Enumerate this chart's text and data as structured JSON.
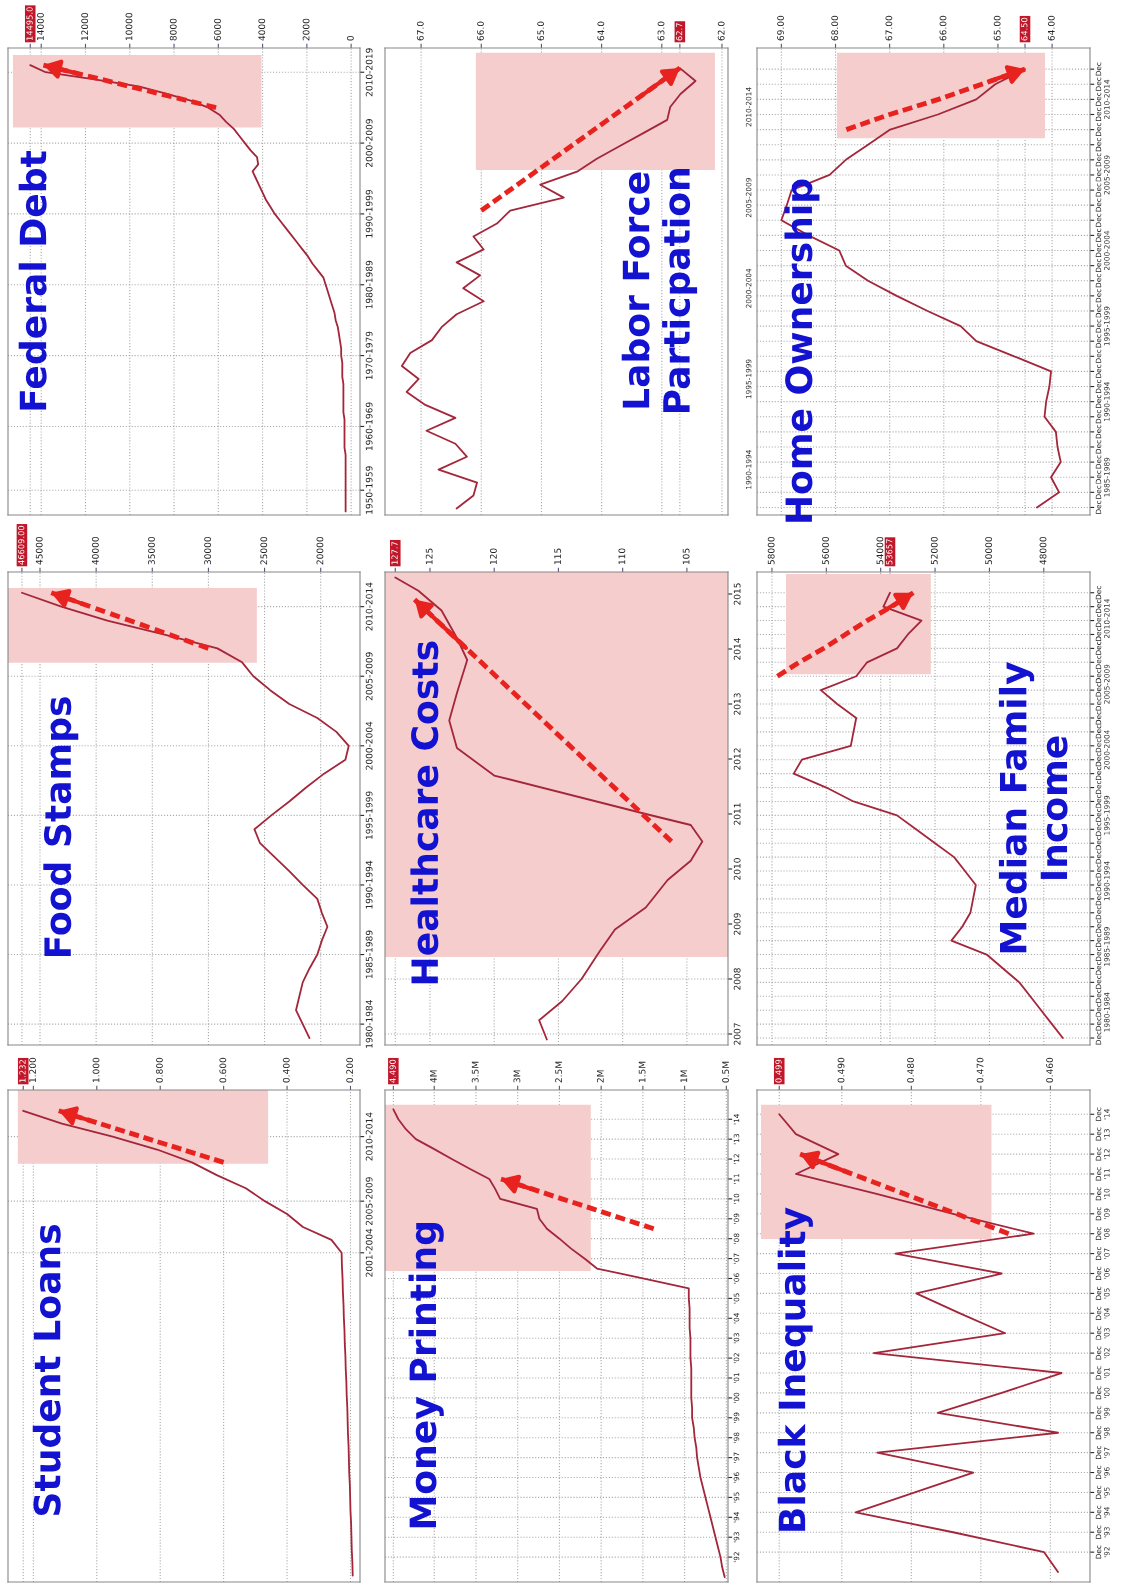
{
  "chart_data": [
    {
      "type": "line",
      "orientation": "horizontal",
      "title": "Federal Debt",
      "grid": true,
      "marker": "none",
      "categories": [
        null,
        "2010-2019",
        null,
        null,
        null,
        null,
        null,
        null,
        null,
        null,
        null,
        "2000-2009",
        null,
        null,
        null,
        null,
        null,
        null,
        null,
        null,
        null,
        "1990-1999",
        null,
        null,
        null,
        null,
        null,
        null,
        null,
        null,
        null,
        "1980-1989",
        null,
        null,
        null,
        null,
        null,
        null,
        null,
        null,
        null,
        "1970-1979",
        null,
        null,
        null,
        null,
        null,
        null,
        null,
        null,
        null,
        "1960-1969",
        null,
        null,
        null,
        null,
        null,
        null,
        null,
        null,
        "1950-1959",
        null,
        null,
        null
      ],
      "series": [
        {
          "color": "#a3263a",
          "values": [
            14495,
            13800,
            11600,
            9600,
            8400,
            7250,
            6450,
            5950,
            5650,
            5300,
            5050,
            4800,
            4550,
            4250,
            4200,
            4450,
            4300,
            4150,
            4000,
            3850,
            3650,
            3450,
            3200,
            2950,
            2700,
            2450,
            2200,
            1950,
            1750,
            1500,
            1250,
            1150,
            1050,
            950,
            850,
            750,
            700,
            600,
            550,
            500,
            450,
            450,
            400,
            400,
            400,
            350,
            350,
            350,
            350,
            350,
            300,
            300,
            300,
            300,
            300,
            250,
            250,
            250,
            250,
            250,
            250,
            250,
            250,
            250
          ]
        },
        {
          "type": "line",
          "color": "#e8231f",
          "line_style": "dashed",
          "values": [
            13900,
            12600,
            11300,
            10000,
            8700,
            7400,
            6100,
            null,
            null,
            null,
            null,
            null,
            null,
            null,
            null,
            null,
            null,
            null,
            null,
            null,
            null,
            null,
            null,
            null,
            null,
            null,
            null,
            null,
            null,
            null,
            null,
            null,
            null,
            null,
            null,
            null,
            null,
            null,
            null,
            null,
            null,
            null,
            null,
            null,
            null,
            null,
            null,
            null,
            null,
            null,
            null,
            null,
            null,
            null,
            null,
            null,
            null,
            null,
            null,
            null,
            null,
            null,
            null,
            null
          ]
        }
      ],
      "xlim": [
        15500,
        -400
      ],
      "xticks": [
        0,
        2000,
        4000,
        6000,
        8000,
        10000,
        12000,
        14000,
        {
          "value": 14495,
          "label": "14495.0"
        }
      ]
    },
    {
      "type": "line",
      "orientation": "horizontal",
      "title": "Labor Force\nParticpation",
      "grid": true,
      "marker": "none",
      "categories": [
        null,
        null,
        null,
        null,
        null,
        null,
        null,
        null,
        null,
        null,
        null,
        null,
        null,
        null,
        null,
        null,
        null,
        null,
        null,
        null,
        null,
        null,
        null,
        null,
        null,
        null,
        null,
        null,
        null,
        null,
        null,
        null,
        null,
        null,
        null
      ],
      "series": [
        {
          "color": "#a3263a",
          "values": [
            62.7,
            62.44,
            62.69,
            62.86,
            62.91,
            63.3,
            63.69,
            64.08,
            64.41,
            65.02,
            64.63,
            65.52,
            65.74,
            66.13,
            65.96,
            66.41,
            66.02,
            66.3,
            65.96,
            66.41,
            66.66,
            66.82,
            67.18,
            67.32,
            67.04,
            67.24,
            66.93,
            66.43,
            66.91,
            66.43,
            66.24,
            66.71,
            66.07,
            66.13,
            66.41
          ]
        },
        {
          "type": "line",
          "color": "#e8231f",
          "line_style": "dashed",
          "values": [
            62.7,
            63.0,
            63.3,
            63.6,
            63.9,
            64.2,
            64.5,
            64.8,
            65.1,
            65.4,
            65.7,
            66.0,
            null,
            null,
            null,
            null,
            null,
            null,
            null,
            null,
            null,
            null,
            null,
            null,
            null,
            null,
            null,
            null,
            null,
            null,
            null,
            null,
            null,
            null,
            null
          ]
        }
      ],
      "xlim": [
        67.6,
        61.9
      ],
      "xticks": [
        {
          "value": 62,
          "label": "62.0"
        },
        {
          "value": 63,
          "label": "63.0"
        },
        {
          "value": 64,
          "label": "64.0"
        },
        {
          "value": 65,
          "label": "65.0"
        },
        {
          "value": 66,
          "label": "66.0"
        },
        {
          "value": 67,
          "label": "67.0"
        },
        62.7
      ]
    },
    {
      "type": "line",
      "orientation": "horizontal",
      "title": "Home Ownership",
      "grid": true,
      "marker": "none",
      "categories": [
        "Dec",
        "Dec",
        "Dec",
        "Dec",
        "Dec",
        "Dec",
        "Dec",
        "Dec",
        "Dec",
        "Dec",
        "Dec",
        "Dec",
        "Dec",
        "Dec",
        "Dec",
        "Dec",
        "Dec",
        "Dec",
        "Dec",
        "Dec",
        "Dec",
        "Dec",
        "Dec",
        "Dec",
        "Dec",
        "Dec",
        "Dec",
        "Dec",
        "Dec",
        "Dec"
      ],
      "series": [
        {
          "color": "#a3263a",
          "values": [
            64.5,
            65.05,
            65.4,
            66.11,
            66.99,
            67.4,
            67.81,
            68.11,
            68.81,
            68.9,
            69.0,
            68.5,
            67.93,
            67.81,
            67.4,
            66.87,
            66.3,
            65.69,
            65.4,
            64.7,
            64.02,
            64.05,
            64.11,
            64.14,
            63.93,
            63.9,
            63.84,
            64.02,
            63.87,
            64.28
          ]
        },
        {
          "type": "line",
          "color": "#e8231f",
          "line_style": "dashed",
          "values": [
            64.5,
            65.3,
            66.1,
            67.0,
            67.8,
            null,
            null,
            null,
            null,
            null,
            null,
            null,
            null,
            null,
            null,
            null,
            null,
            null,
            null,
            null,
            null,
            null,
            null,
            null,
            null,
            null,
            null,
            null,
            null,
            null
          ]
        }
      ],
      "xlim": [
        69.45,
        63.3
      ],
      "xticks": [
        {
          "value": 64,
          "label": "64.00"
        },
        {
          "value": 65,
          "label": "65.00"
        },
        {
          "value": 66,
          "label": "66.00"
        },
        {
          "value": 67,
          "label": "67.00"
        },
        {
          "value": 68,
          "label": "68.00"
        },
        {
          "value": 69,
          "label": "69.00"
        },
        {
          "value": 64.5,
          "label": "64.50"
        }
      ],
      "annotations": [
        "2010-2014",
        "2005-2009",
        "2000-2004",
        "1995-1999",
        "1990-1994",
        "1985-1989",
        "2010-2014",
        "2005-2009",
        "2000-2004",
        "1995-1999",
        "1990-1994"
      ]
    },
    {
      "type": "line",
      "orientation": "horizontal",
      "title": "Food Stamps",
      "grid": true,
      "marker": "none",
      "categories": [
        null,
        "2010-2014",
        null,
        null,
        null,
        null,
        "2005-2009",
        null,
        null,
        null,
        null,
        "2000-2004",
        null,
        null,
        null,
        null,
        "1995-1999",
        null,
        null,
        null,
        null,
        "1990-1994",
        null,
        null,
        null,
        null,
        "1985-1989",
        null,
        null,
        null,
        null,
        "1980-1984",
        null
      ],
      "series": [
        {
          "color": "#a3263a",
          "values": [
            46609,
            43100,
            39000,
            34000,
            29200,
            27000,
            26000,
            24500,
            22800,
            20300,
            18600,
            17500,
            17800,
            19700,
            21300,
            22800,
            24400,
            25900,
            25400,
            24100,
            22800,
            21600,
            20300,
            19900,
            19400,
            19900,
            20300,
            21000,
            21600,
            21900,
            22200,
            21600,
            21000
          ]
        },
        {
          "type": "line",
          "color": "#e8231f",
          "line_style": "dashed",
          "values": [
            44000,
            40500,
            37000,
            33500,
            30000,
            null,
            null,
            null,
            null,
            null,
            null,
            null,
            null,
            null,
            null,
            null,
            null,
            null,
            null,
            null,
            null,
            null,
            null,
            null,
            null,
            null,
            null,
            null,
            null,
            null,
            null,
            null,
            null
          ]
        }
      ],
      "xlim": [
        47850,
        16500
      ],
      "xticks": [
        20000,
        25000,
        30000,
        35000,
        40000,
        45000,
        {
          "value": 46609,
          "label": "46609.00"
        }
      ]
    },
    {
      "type": "line",
      "orientation": "horizontal",
      "title": "Healthcare Costs",
      "grid": true,
      "marker": "none",
      "x": [
        2006.9,
        2007.25,
        2007.6,
        2008,
        2008.5,
        2008.9,
        2009.3,
        2009.8,
        2010.15,
        2010.5,
        2010.8,
        2011.0,
        2011.7,
        2012.2,
        2012.7,
        2013.2,
        2013.8,
        2014.2,
        2014.7,
        2015.06,
        2015.3
      ],
      "series": [
        {
          "color": "#a3263a",
          "values": [
            115.9,
            116.5,
            114.7,
            113.2,
            111.8,
            110.6,
            108.2,
            106.5,
            104.7,
            103.8,
            104.7,
            108.2,
            120.0,
            122.9,
            123.5,
            122.9,
            122.1,
            122.9,
            124.1,
            125.9,
            127.7
          ]
        },
        {
          "type": "line",
          "color": "#e8231f",
          "line_style": "dashed",
          "x": [
            2010.5,
            2014.9
          ],
          "values": [
            106.2,
            126.2
          ]
        }
      ],
      "ylim": [
        2006.8,
        2015.4
      ],
      "xlim": [
        128.5,
        101.8
      ],
      "xticks": [
        105,
        110,
        115,
        120,
        125,
        127.7
      ],
      "yticks": [
        2007,
        2008,
        2009,
        2010,
        2011,
        2012,
        2013,
        2014,
        2015
      ],
      "bands": [
        {
          "axis": "y",
          "from": 2008.4,
          "to": 2015.4,
          "color": "#f6cdcd"
        }
      ]
    },
    {
      "type": "line",
      "orientation": "horizontal",
      "title": "Median Family\nIncome",
      "grid": true,
      "marker": "none",
      "categories": [
        "Dec",
        "Dec",
        "Dec",
        "Dec",
        "Dec",
        "Dec",
        "Dec",
        "Dec",
        "Dec",
        "Dec",
        "Dec",
        "Dec",
        "Dec",
        "Dec",
        "Dec",
        "Dec",
        "Dec",
        "Dec",
        "Dec",
        "Dec",
        "Dec",
        "Dec",
        "Dec",
        "Dec",
        "Dec",
        "Dec",
        "Dec",
        "Dec",
        "Dec",
        "Dec",
        "Dec",
        "Dec",
        "Dec"
      ],
      "series": [
        {
          "color": "#a3263a",
          "values": [
            53657,
            53900,
            52500,
            53000,
            53400,
            54500,
            54900,
            56200,
            55600,
            54900,
            55000,
            55100,
            56900,
            57200,
            56000,
            55000,
            53400,
            52700,
            52000,
            51300,
            50900,
            50500,
            50600,
            50700,
            51000,
            51400,
            50100,
            49500,
            48900,
            48500,
            48100,
            47700,
            47300
          ]
        },
        {
          "type": "line",
          "color": "#e8231f",
          "line_style": "dashed",
          "values": [
            52800,
            53600,
            54500,
            55300,
            56100,
            57000,
            57800,
            null,
            null,
            null,
            null,
            null,
            null,
            null,
            null,
            null,
            null,
            null,
            null,
            null,
            null,
            null,
            null,
            null,
            null,
            null,
            null,
            null,
            null,
            null,
            null,
            null,
            null
          ]
        }
      ],
      "xlim": [
        58550,
        46300
      ],
      "xticks": [
        48000,
        50000,
        52000,
        54000,
        56000,
        58000,
        53657
      ],
      "annotations": [
        "2010-2014",
        "2005-2009",
        "2000-2004",
        "1995-1999",
        "1990-1994",
        "1985-1989",
        "1980-1984"
      ]
    },
    {
      "type": "line",
      "orientation": "horizontal",
      "title": "Student Loans",
      "grid": true,
      "marker": "none",
      "categories": [
        null,
        null,
        "2010-2014",
        null,
        null,
        null,
        null,
        "2005-2009",
        null,
        null,
        null,
        "2001-2004",
        null,
        null,
        null,
        null,
        null,
        null,
        null,
        null,
        null,
        null,
        null,
        null,
        null,
        null,
        null,
        null,
        null,
        null,
        null,
        null,
        null,
        null,
        null,
        null,
        null
      ],
      "series": [
        {
          "color": "#a3263a",
          "values": [
            1.232,
            1.11,
            0.95,
            0.81,
            0.7,
            0.62,
            0.53,
            0.47,
            0.4,
            0.35,
            0.26,
            0.228,
            0.227,
            0.225,
            0.224,
            0.222,
            0.221,
            0.219,
            0.218,
            0.216,
            0.215,
            0.213,
            0.212,
            0.21,
            0.209,
            0.208,
            0.206,
            0.205,
            0.204,
            0.202,
            0.201,
            0.2,
            0.198,
            0.197,
            0.196,
            0.194,
            0.193
          ]
        },
        {
          "type": "line",
          "color": "#e8231f",
          "line_style": "dashed",
          "values": [
            1.12,
            0.99,
            0.86,
            0.73,
            0.6,
            null,
            null,
            null,
            null,
            null,
            null,
            null,
            null,
            null,
            null,
            null,
            null,
            null,
            null,
            null,
            null,
            null,
            null,
            null,
            null,
            null,
            null,
            null,
            null,
            null,
            null,
            null,
            null,
            null,
            null,
            null,
            null
          ]
        }
      ],
      "xlim": [
        1.28,
        0.17
      ],
      "xticks": [
        {
          "value": 0.2,
          "label": "0.200"
        },
        {
          "value": 0.4,
          "label": "0.400"
        },
        {
          "value": 0.6,
          "label": "0.600"
        },
        {
          "value": 0.8,
          "label": "0.800"
        },
        {
          "value": 1.0,
          "label": "1.000"
        },
        {
          "value": 1.2,
          "label": "1.200"
        },
        1.232
      ]
    },
    {
      "type": "line",
      "orientation": "horizontal",
      "title": "Money Printing",
      "grid": true,
      "marker": "none",
      "categories": [
        null,
        "'14",
        null,
        "'13",
        null,
        "'12",
        null,
        "'11",
        null,
        "'10",
        null,
        "'09",
        null,
        "'08",
        null,
        "'07",
        null,
        "'06",
        null,
        "'05",
        null,
        "'04",
        null,
        "'03",
        null,
        "'02",
        null,
        "'01",
        null,
        "'00",
        null,
        "'99",
        null,
        "'98",
        null,
        "'97",
        null,
        "'96",
        null,
        "'95",
        null,
        "'94",
        null,
        "'93",
        null,
        "'92",
        null,
        null
      ],
      "series": [
        {
          "color": "#a3263a",
          "values": [
            4.49,
            4.43,
            4.34,
            4.22,
            4.0,
            3.79,
            3.57,
            3.34,
            3.27,
            3.21,
            2.77,
            2.74,
            2.65,
            2.5,
            2.36,
            2.2,
            2.05,
            1.5,
            0.95,
            0.95,
            0.94,
            0.94,
            0.94,
            0.93,
            0.93,
            0.93,
            0.92,
            0.92,
            0.92,
            0.92,
            0.91,
            0.91,
            0.89,
            0.88,
            0.86,
            0.85,
            0.83,
            0.81,
            0.78,
            0.75,
            0.72,
            0.69,
            0.66,
            0.63,
            0.6,
            0.57,
            0.55,
            0.52
          ]
        },
        {
          "type": "line",
          "color": "#e8231f",
          "line_style": "dashed",
          "values": [
            null,
            null,
            null,
            null,
            null,
            null,
            null,
            3.2,
            2.83,
            2.47,
            2.1,
            1.74,
            1.37,
            null,
            null,
            null,
            null,
            null,
            null,
            null,
            null,
            null,
            null,
            null,
            null,
            null,
            null,
            null,
            null,
            null,
            null,
            null,
            null,
            null,
            null,
            null,
            null,
            null,
            null,
            null,
            null,
            null,
            null,
            null,
            null,
            null,
            null,
            null
          ]
        }
      ],
      "xlim": [
        4.59,
        0.48
      ],
      "xticks": [
        {
          "value": 0.5,
          "label": "0.5M"
        },
        {
          "value": 1,
          "label": "1M"
        },
        {
          "value": 1.5,
          "label": "1.5M"
        },
        {
          "value": 2,
          "label": "2M"
        },
        {
          "value": 2.5,
          "label": "2.5M"
        },
        {
          "value": 3,
          "label": "3M"
        },
        {
          "value": 3.5,
          "label": "3.5M"
        },
        {
          "value": 4,
          "label": "4M"
        },
        {
          "value": 4.49,
          "label": "4.490"
        }
      ]
    },
    {
      "type": "line",
      "orientation": "horizontal",
      "title": "Black Inequality",
      "grid": true,
      "marker": "none",
      "categories": [
        "Dec",
        "Dec",
        "Dec",
        "Dec",
        "Dec",
        "Dec",
        "Dec",
        "Dec",
        "Dec",
        "Dec",
        "Dec",
        "Dec",
        "Dec",
        "Dec",
        "Dec",
        "Dec",
        "Dec",
        "Dec",
        "Dec",
        "Dec",
        "Dec",
        "Dec",
        "Dec",
        null
      ],
      "series": [
        {
          "color": "#a3263a",
          "values": [
            0.499,
            0.4966,
            0.4905,
            0.4966,
            0.485,
            0.474,
            0.4624,
            0.4823,
            0.467,
            0.4793,
            0.473,
            0.4665,
            0.4854,
            0.4584,
            0.467,
            0.4762,
            0.4589,
            0.4849,
            0.4711,
            0.4795,
            0.488,
            0.474,
            0.4609,
            0.4589
          ]
        },
        {
          "type": "line",
          "color": "#e8231f",
          "line_style": "dashed",
          "values": [
            null,
            null,
            0.496,
            0.4885,
            0.481,
            0.4735,
            0.466,
            null,
            null,
            null,
            null,
            null,
            null,
            null,
            null,
            null,
            null,
            null,
            null,
            null,
            null,
            null,
            null,
            null
          ]
        }
      ],
      "xlim": [
        0.5022,
        0.4543
      ],
      "xticks": [
        {
          "value": 0.46,
          "label": "0.460"
        },
        {
          "value": 0.47,
          "label": "0.470"
        },
        {
          "value": 0.48,
          "label": "0.480"
        },
        {
          "value": 0.49,
          "label": "0.490"
        },
        0.499
      ],
      "annotations": [
        "'14",
        "'13",
        "'12",
        "'11",
        "'10",
        "'09",
        "'08",
        "'07",
        "'06",
        "'05",
        "'04",
        "'03",
        "'02",
        "'01",
        "'00",
        "'99",
        "'98",
        "'97",
        "'96",
        "'95",
        "'94",
        "'93",
        "'92"
      ]
    }
  ]
}
